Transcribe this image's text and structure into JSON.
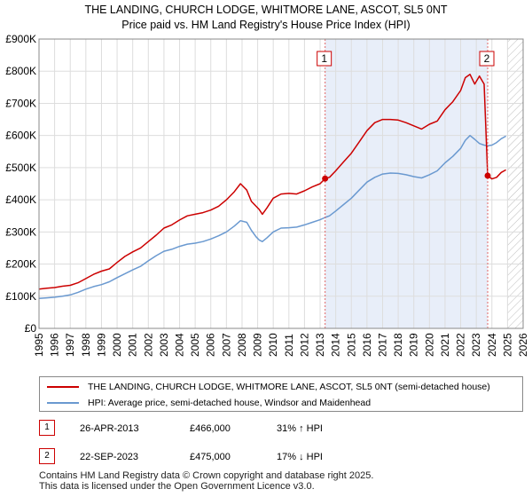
{
  "chart_data": {
    "type": "line",
    "title": "THE LANDING, CHURCH LODGE, WHITMORE LANE, ASCOT, SL5 0NT",
    "subtitle": "Price paid vs. HM Land Registry's House Price Index (HPI)",
    "xlim": [
      1995,
      2026
    ],
    "ylim": [
      0,
      900000
    ],
    "x_ticks": [
      "1995",
      "1996",
      "1997",
      "1998",
      "1999",
      "2000",
      "2001",
      "2002",
      "2003",
      "2004",
      "2005",
      "2006",
      "2007",
      "2008",
      "2009",
      "2010",
      "2011",
      "2012",
      "2013",
      "2014",
      "2015",
      "2016",
      "2017",
      "2018",
      "2019",
      "2020",
      "2021",
      "2022",
      "2023",
      "2024",
      "2025",
      "2026"
    ],
    "y_ticks": [
      {
        "value": 0,
        "label": "£0"
      },
      {
        "value": 100000,
        "label": "£100K"
      },
      {
        "value": 200000,
        "label": "£200K"
      },
      {
        "value": 300000,
        "label": "£300K"
      },
      {
        "value": 400000,
        "label": "£400K"
      },
      {
        "value": 500000,
        "label": "£500K"
      },
      {
        "value": 600000,
        "label": "£600K"
      },
      {
        "value": 700000,
        "label": "£700K"
      },
      {
        "value": 800000,
        "label": "£800K"
      },
      {
        "value": 900000,
        "label": "£900K"
      }
    ],
    "shaded_region": {
      "from": 2013.32,
      "to": 2023.73
    },
    "future_hatch_from": 2025.0,
    "series": [
      {
        "name": "THE LANDING, CHURCH LODGE, WHITMORE LANE, ASCOT, SL5 0NT (semi-detached house)",
        "color": "#cc0000",
        "points": [
          [
            1995.0,
            122000
          ],
          [
            1995.5,
            125000
          ],
          [
            1996.0,
            127000
          ],
          [
            1996.5,
            131000
          ],
          [
            1997.0,
            134000
          ],
          [
            1997.5,
            142000
          ],
          [
            1998.0,
            155000
          ],
          [
            1998.5,
            168000
          ],
          [
            1999.0,
            178000
          ],
          [
            1999.5,
            185000
          ],
          [
            2000.0,
            205000
          ],
          [
            2000.5,
            224000
          ],
          [
            2001.0,
            238000
          ],
          [
            2001.5,
            250000
          ],
          [
            2002.0,
            270000
          ],
          [
            2002.5,
            290000
          ],
          [
            2003.0,
            312000
          ],
          [
            2003.5,
            322000
          ],
          [
            2004.0,
            337000
          ],
          [
            2004.5,
            350000
          ],
          [
            2005.0,
            355000
          ],
          [
            2005.5,
            360000
          ],
          [
            2006.0,
            368000
          ],
          [
            2006.5,
            380000
          ],
          [
            2007.0,
            400000
          ],
          [
            2007.5,
            425000
          ],
          [
            2007.9,
            450000
          ],
          [
            2008.3,
            430000
          ],
          [
            2008.6,
            395000
          ],
          [
            2008.9,
            380000
          ],
          [
            2009.1,
            370000
          ],
          [
            2009.3,
            355000
          ],
          [
            2009.6,
            375000
          ],
          [
            2010.0,
            405000
          ],
          [
            2010.5,
            418000
          ],
          [
            2011.0,
            420000
          ],
          [
            2011.5,
            418000
          ],
          [
            2012.0,
            428000
          ],
          [
            2012.5,
            440000
          ],
          [
            2013.0,
            450000
          ],
          [
            2013.32,
            466000
          ],
          [
            2013.6,
            470000
          ],
          [
            2014.0,
            490000
          ],
          [
            2014.5,
            518000
          ],
          [
            2015.0,
            545000
          ],
          [
            2015.5,
            580000
          ],
          [
            2016.0,
            615000
          ],
          [
            2016.5,
            640000
          ],
          [
            2017.0,
            650000
          ],
          [
            2017.5,
            650000
          ],
          [
            2018.0,
            648000
          ],
          [
            2018.5,
            640000
          ],
          [
            2019.0,
            630000
          ],
          [
            2019.5,
            620000
          ],
          [
            2020.0,
            635000
          ],
          [
            2020.5,
            645000
          ],
          [
            2021.0,
            680000
          ],
          [
            2021.5,
            705000
          ],
          [
            2022.0,
            740000
          ],
          [
            2022.3,
            780000
          ],
          [
            2022.6,
            790000
          ],
          [
            2022.9,
            760000
          ],
          [
            2023.2,
            785000
          ],
          [
            2023.5,
            760000
          ],
          [
            2023.73,
            475000
          ],
          [
            2024.0,
            465000
          ],
          [
            2024.3,
            470000
          ],
          [
            2024.6,
            485000
          ],
          [
            2024.9,
            493000
          ]
        ]
      },
      {
        "name": "HPI: Average price, semi-detached house, Windsor and Maidenhead",
        "color": "#6a99d0",
        "points": [
          [
            1995.0,
            93000
          ],
          [
            1995.5,
            95000
          ],
          [
            1996.0,
            97000
          ],
          [
            1996.5,
            100000
          ],
          [
            1997.0,
            104000
          ],
          [
            1997.5,
            112000
          ],
          [
            1998.0,
            122000
          ],
          [
            1998.5,
            130000
          ],
          [
            1999.0,
            136000
          ],
          [
            1999.5,
            145000
          ],
          [
            2000.0,
            158000
          ],
          [
            2000.5,
            170000
          ],
          [
            2001.0,
            182000
          ],
          [
            2001.5,
            193000
          ],
          [
            2002.0,
            210000
          ],
          [
            2002.5,
            226000
          ],
          [
            2003.0,
            240000
          ],
          [
            2003.5,
            246000
          ],
          [
            2004.0,
            255000
          ],
          [
            2004.5,
            262000
          ],
          [
            2005.0,
            265000
          ],
          [
            2005.5,
            270000
          ],
          [
            2006.0,
            278000
          ],
          [
            2006.5,
            288000
          ],
          [
            2007.0,
            300000
          ],
          [
            2007.5,
            318000
          ],
          [
            2007.9,
            335000
          ],
          [
            2008.3,
            330000
          ],
          [
            2008.6,
            305000
          ],
          [
            2008.9,
            285000
          ],
          [
            2009.1,
            275000
          ],
          [
            2009.3,
            270000
          ],
          [
            2009.6,
            282000
          ],
          [
            2010.0,
            300000
          ],
          [
            2010.5,
            312000
          ],
          [
            2011.0,
            313000
          ],
          [
            2011.5,
            315000
          ],
          [
            2012.0,
            322000
          ],
          [
            2012.5,
            330000
          ],
          [
            2013.0,
            338000
          ],
          [
            2013.32,
            345000
          ],
          [
            2013.6,
            350000
          ],
          [
            2014.0,
            365000
          ],
          [
            2014.5,
            385000
          ],
          [
            2015.0,
            405000
          ],
          [
            2015.5,
            430000
          ],
          [
            2016.0,
            455000
          ],
          [
            2016.5,
            470000
          ],
          [
            2017.0,
            480000
          ],
          [
            2017.5,
            483000
          ],
          [
            2018.0,
            482000
          ],
          [
            2018.5,
            478000
          ],
          [
            2019.0,
            472000
          ],
          [
            2019.5,
            468000
          ],
          [
            2020.0,
            478000
          ],
          [
            2020.5,
            490000
          ],
          [
            2021.0,
            515000
          ],
          [
            2021.5,
            535000
          ],
          [
            2022.0,
            560000
          ],
          [
            2022.3,
            585000
          ],
          [
            2022.6,
            600000
          ],
          [
            2022.9,
            588000
          ],
          [
            2023.2,
            575000
          ],
          [
            2023.5,
            570000
          ],
          [
            2023.73,
            568000
          ],
          [
            2024.0,
            570000
          ],
          [
            2024.3,
            578000
          ],
          [
            2024.6,
            590000
          ],
          [
            2024.9,
            598000
          ]
        ]
      }
    ],
    "sale_markers": [
      {
        "id": "1",
        "x": 2013.32,
        "y": 466000
      },
      {
        "id": "2",
        "x": 2023.73,
        "y": 475000
      }
    ]
  },
  "legend": {
    "series_1": "THE LANDING, CHURCH LODGE, WHITMORE LANE, ASCOT, SL5 0NT (semi-detached house)",
    "series_2": "HPI: Average price, semi-detached house, Windsor and Maidenhead"
  },
  "transactions": [
    {
      "id": "1",
      "date": "26-APR-2013",
      "price": "£466,000",
      "hpi": "31% ↑ HPI"
    },
    {
      "id": "2",
      "date": "22-SEP-2023",
      "price": "£475,000",
      "hpi": "17% ↓ HPI"
    }
  ],
  "footer": {
    "line1": "Contains HM Land Registry data © Crown copyright and database right 2025.",
    "line2": "This data is licensed under the Open Government Licence v3.0."
  },
  "colors": {
    "property_line": "#cc0000",
    "hpi_line": "#6a99d0",
    "shade": "#e8eef9",
    "grid": "#dddddd"
  }
}
